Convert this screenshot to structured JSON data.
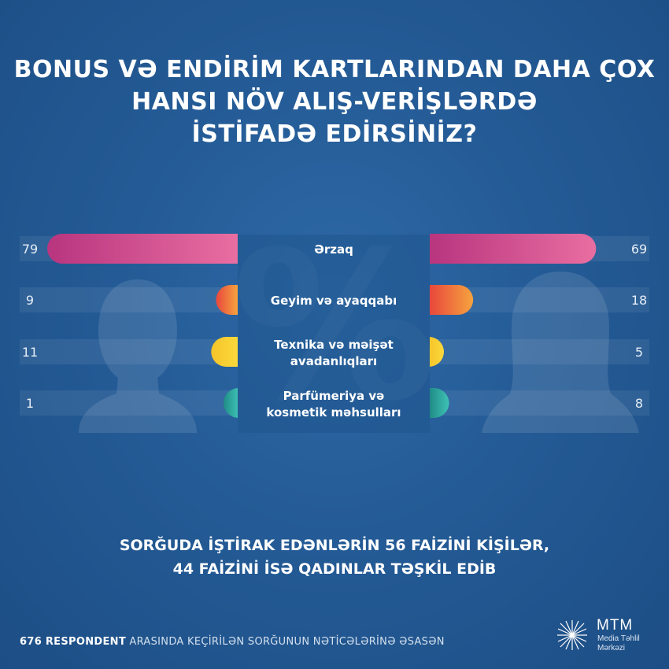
{
  "title": "BONUS VƏ ENDİRİM KARTLARINDAN DAHA ÇOX\nHANSI NÖV ALIŞ-VERİŞLƏRDƏ\nİSTİFADƏ EDİRSİNİZ?",
  "subtitle": "SORĞUDA İŞTİRAK EDƏNLƏRİN 56 FAİZİNİ KİŞİLƏR,\n44 FAİZİNİ İSƏ QADINLAR TƏŞKİL EDİB",
  "footer": {
    "respondents": "676 RESPONDENT",
    "rest": " ARASINDA KEÇİRİLƏN SORĞUNUN NƏTİCƏLƏRİNƏ ƏSASƏN"
  },
  "logo": {
    "name": "MTM",
    "subtitle": "Media Təhlil\nMərkəzi"
  },
  "chart_data": {
    "type": "bar",
    "categories": [
      "Ərzaq",
      "Geyim və ayaqqabı",
      "Texnika və məişət avadanlıqları",
      "Parfümeriya və kosmetik məhsulları"
    ],
    "series": [
      {
        "values": [
          79,
          9,
          11,
          1
        ]
      },
      {
        "values": [
          69,
          18,
          5,
          8
        ]
      }
    ],
    "xlim": [
      0,
      79
    ],
    "colors": [
      [
        "#b8357f",
        "#e96ea1"
      ],
      [
        "#e8473c",
        "#f6a33f"
      ],
      [
        "#f6c42a",
        "#fbd93c"
      ],
      [
        "#1f8c86",
        "#3fc2b6"
      ]
    ],
    "background_mark": "%"
  }
}
